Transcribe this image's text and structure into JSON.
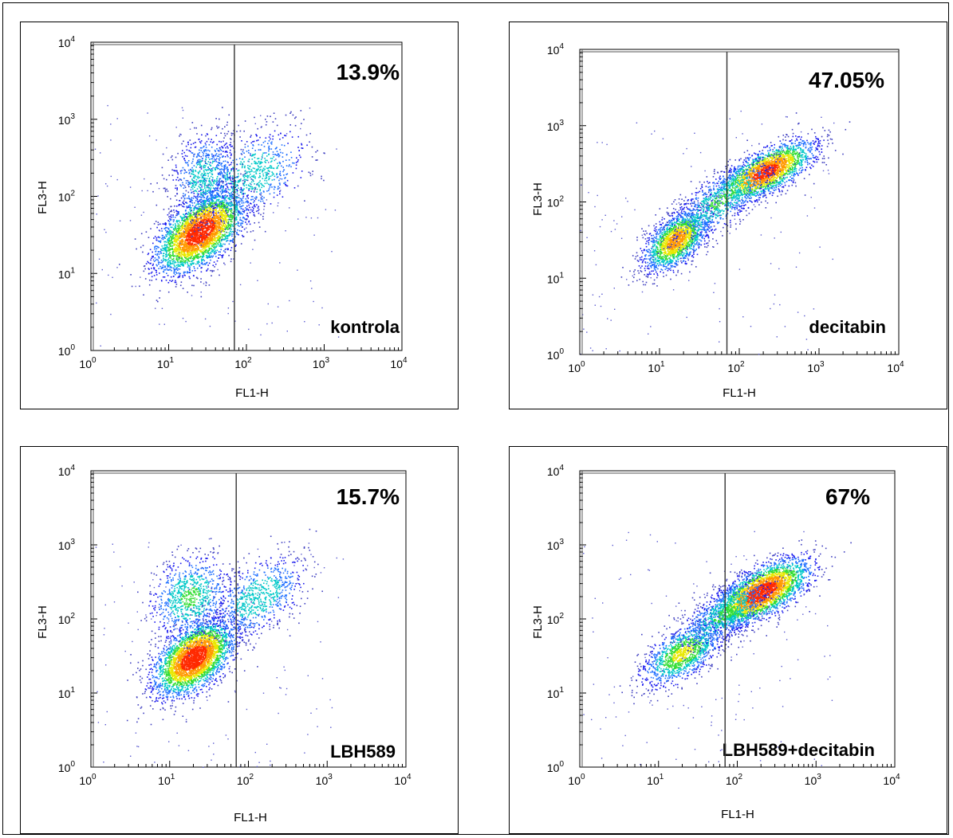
{
  "figure": {
    "panels": [
      {
        "sample_label": "kontrola",
        "percentage": "13.9%",
        "xlabel": "FL1-H",
        "ylabel": "FL3-H",
        "gate_x": 70,
        "axis_base": "10",
        "tick_exponents": [
          "0",
          "1",
          "2",
          "3",
          "4"
        ]
      },
      {
        "sample_label": "decitabin",
        "percentage": "47.05%",
        "xlabel": "FL1-H",
        "ylabel": "FL3-H",
        "gate_x": 70,
        "axis_base": "10",
        "tick_exponents": [
          "0",
          "1",
          "2",
          "3",
          "4"
        ]
      },
      {
        "sample_label": "LBH589",
        "percentage": "15.7%",
        "xlabel": "FL1-H",
        "ylabel": "FL3-H",
        "gate_x": 70,
        "axis_base": "10",
        "tick_exponents": [
          "0",
          "1",
          "2",
          "3",
          "4"
        ]
      },
      {
        "sample_label": "LBH589+decitabin",
        "percentage": "67%",
        "xlabel": "FL1-H",
        "ylabel": "FL3-H",
        "gate_x": 70,
        "axis_base": "10",
        "tick_exponents": [
          "0",
          "1",
          "2",
          "3",
          "4"
        ]
      }
    ]
  },
  "chart_data": [
    {
      "type": "scatter",
      "title": "",
      "annotations": [
        "13.9%",
        "kontrola"
      ],
      "xlabel": "FL1-H",
      "ylabel": "FL3-H",
      "x_scale": "log",
      "y_scale": "log",
      "xlim": [
        1,
        10000
      ],
      "ylim": [
        1,
        10000
      ],
      "x_ticks": [
        1,
        10,
        100,
        1000,
        10000
      ],
      "y_ticks": [
        1,
        10,
        100,
        1000,
        10000
      ],
      "gate_x": 70,
      "gated_percent": 13.9,
      "populations": [
        {
          "center": [
            25,
            35
          ],
          "spread": [
            0.28,
            0.26
          ],
          "corr": 0.55,
          "n": 3500
        },
        {
          "center": [
            110,
            190
          ],
          "spread": [
            0.38,
            0.3
          ],
          "corr": 0.45,
          "n": 800
        },
        {
          "center": [
            28,
            180
          ],
          "spread": [
            0.22,
            0.3
          ],
          "corr": 0.2,
          "n": 700
        }
      ]
    },
    {
      "type": "scatter",
      "title": "",
      "annotations": [
        "47.05%",
        "decitabin"
      ],
      "xlabel": "FL1-H",
      "ylabel": "FL3-H",
      "x_scale": "log",
      "y_scale": "log",
      "xlim": [
        1,
        10000
      ],
      "ylim": [
        1,
        10000
      ],
      "x_ticks": [
        1,
        10,
        100,
        1000,
        10000
      ],
      "y_ticks": [
        1,
        10,
        100,
        1000,
        10000
      ],
      "gate_x": 70,
      "gated_percent": 47.05,
      "populations": [
        {
          "center": [
            16,
            32
          ],
          "spread": [
            0.2,
            0.2
          ],
          "corr": 0.55,
          "n": 1800
        },
        {
          "center": [
            210,
            250
          ],
          "spread": [
            0.3,
            0.2
          ],
          "corr": 0.7,
          "n": 2300
        },
        {
          "center": [
            60,
            110
          ],
          "spread": [
            0.33,
            0.28
          ],
          "corr": 0.75,
          "n": 900
        }
      ]
    },
    {
      "type": "scatter",
      "title": "",
      "annotations": [
        "15.7%",
        "LBH589"
      ],
      "xlabel": "FL1-H",
      "ylabel": "FL3-H",
      "x_scale": "log",
      "y_scale": "log",
      "xlim": [
        1,
        10000
      ],
      "ylim": [
        1,
        10000
      ],
      "x_ticks": [
        1,
        10,
        100,
        1000,
        10000
      ],
      "y_ticks": [
        1,
        10,
        100,
        1000,
        10000
      ],
      "gate_x": 70,
      "gated_percent": 15.7,
      "populations": [
        {
          "center": [
            20,
            30
          ],
          "spread": [
            0.25,
            0.25
          ],
          "corr": 0.5,
          "n": 3400
        },
        {
          "center": [
            18,
            200
          ],
          "spread": [
            0.25,
            0.28
          ],
          "corr": 0.2,
          "n": 900
        },
        {
          "center": [
            130,
            200
          ],
          "spread": [
            0.3,
            0.28
          ],
          "corr": 0.5,
          "n": 800
        }
      ]
    },
    {
      "type": "scatter",
      "title": "",
      "annotations": [
        "67%",
        "LBH589+decitabin"
      ],
      "xlabel": "FL1-H",
      "ylabel": "FL3-H",
      "x_scale": "log",
      "y_scale": "log",
      "xlim": [
        1,
        10000
      ],
      "ylim": [
        1,
        10000
      ],
      "x_ticks": [
        1,
        10,
        100,
        1000,
        10000
      ],
      "y_ticks": [
        1,
        10,
        100,
        1000,
        10000
      ],
      "gate_x": 70,
      "gated_percent": 67,
      "populations": [
        {
          "center": [
            20,
            35
          ],
          "spread": [
            0.25,
            0.22
          ],
          "corr": 0.6,
          "n": 1300
        },
        {
          "center": [
            200,
            230
          ],
          "spread": [
            0.3,
            0.22
          ],
          "corr": 0.65,
          "n": 3000
        },
        {
          "center": [
            70,
            120
          ],
          "spread": [
            0.3,
            0.25
          ],
          "corr": 0.7,
          "n": 900
        }
      ]
    }
  ]
}
